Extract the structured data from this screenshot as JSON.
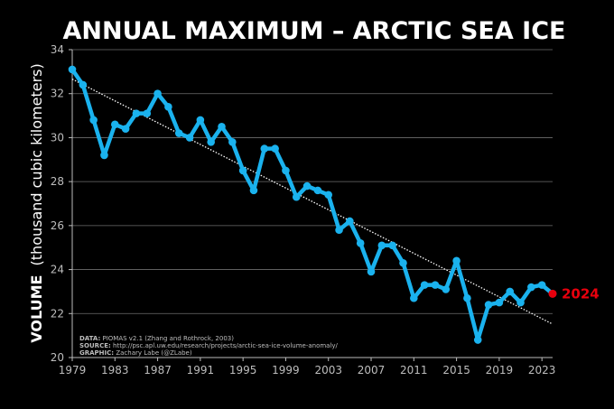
{
  "chart_data": {
    "type": "line",
    "title": "ANNUAL MAXIMUM – ARCTIC SEA ICE",
    "ylabel_bold": "VOLUME",
    "ylabel_rest": "(thousand cubic kilometers)",
    "xlabel": "",
    "xlim": [
      1979,
      2024
    ],
    "ylim": [
      20,
      34
    ],
    "xticks": [
      "1979",
      "1983",
      "1987",
      "1991",
      "1995",
      "1999",
      "2003",
      "2007",
      "2011",
      "2015",
      "2019",
      "2023"
    ],
    "yticks": [
      "20",
      "22",
      "24",
      "26",
      "28",
      "30",
      "32",
      "34"
    ],
    "grid": "horizontal",
    "series": [
      {
        "color": "#1ab2ee",
        "x": [
          1979,
          1980,
          1981,
          1982,
          1983,
          1984,
          1985,
          1986,
          1987,
          1988,
          1989,
          1990,
          1991,
          1992,
          1993,
          1994,
          1995,
          1996,
          1997,
          1998,
          1999,
          2000,
          2001,
          2002,
          2003,
          2004,
          2005,
          2006,
          2007,
          2008,
          2009,
          2010,
          2011,
          2012,
          2013,
          2014,
          2015,
          2016,
          2017,
          2018,
          2019,
          2020,
          2021,
          2022,
          2023,
          2024
        ],
        "values": [
          33.1,
          32.4,
          30.8,
          29.2,
          30.6,
          30.4,
          31.1,
          31.1,
          32.0,
          31.4,
          30.2,
          30.0,
          30.8,
          29.8,
          30.5,
          29.8,
          28.5,
          27.6,
          29.5,
          29.5,
          28.5,
          27.3,
          27.8,
          27.6,
          27.4,
          25.8,
          26.2,
          25.2,
          23.9,
          25.1,
          25.1,
          24.3,
          22.7,
          23.3,
          23.3,
          23.1,
          24.4,
          22.7,
          20.8,
          22.4,
          22.5,
          23.0,
          22.5,
          23.2,
          23.3,
          22.9
        ]
      }
    ],
    "highlight": {
      "x": 2024,
      "y": 22.9,
      "label": "2024",
      "color": "#e8000d"
    },
    "trend": {
      "color": "#ffffff",
      "style": "dotted",
      "x": [
        1979,
        2024
      ],
      "y": [
        32.66,
        21.52
      ]
    }
  },
  "credits": {
    "data_key": "DATA:",
    "data_val": " PIOMAS v2.1 (Zhang and Rothrock, 2003)",
    "source_key": "SOURCE:",
    "source_val": " http://psc.apl.uw.edu/research/projects/arctic-sea-ice-volume-anomaly/",
    "graphic_key": "GRAPHIC:",
    "graphic_val": " Zachary Labe (@ZLabe)"
  }
}
